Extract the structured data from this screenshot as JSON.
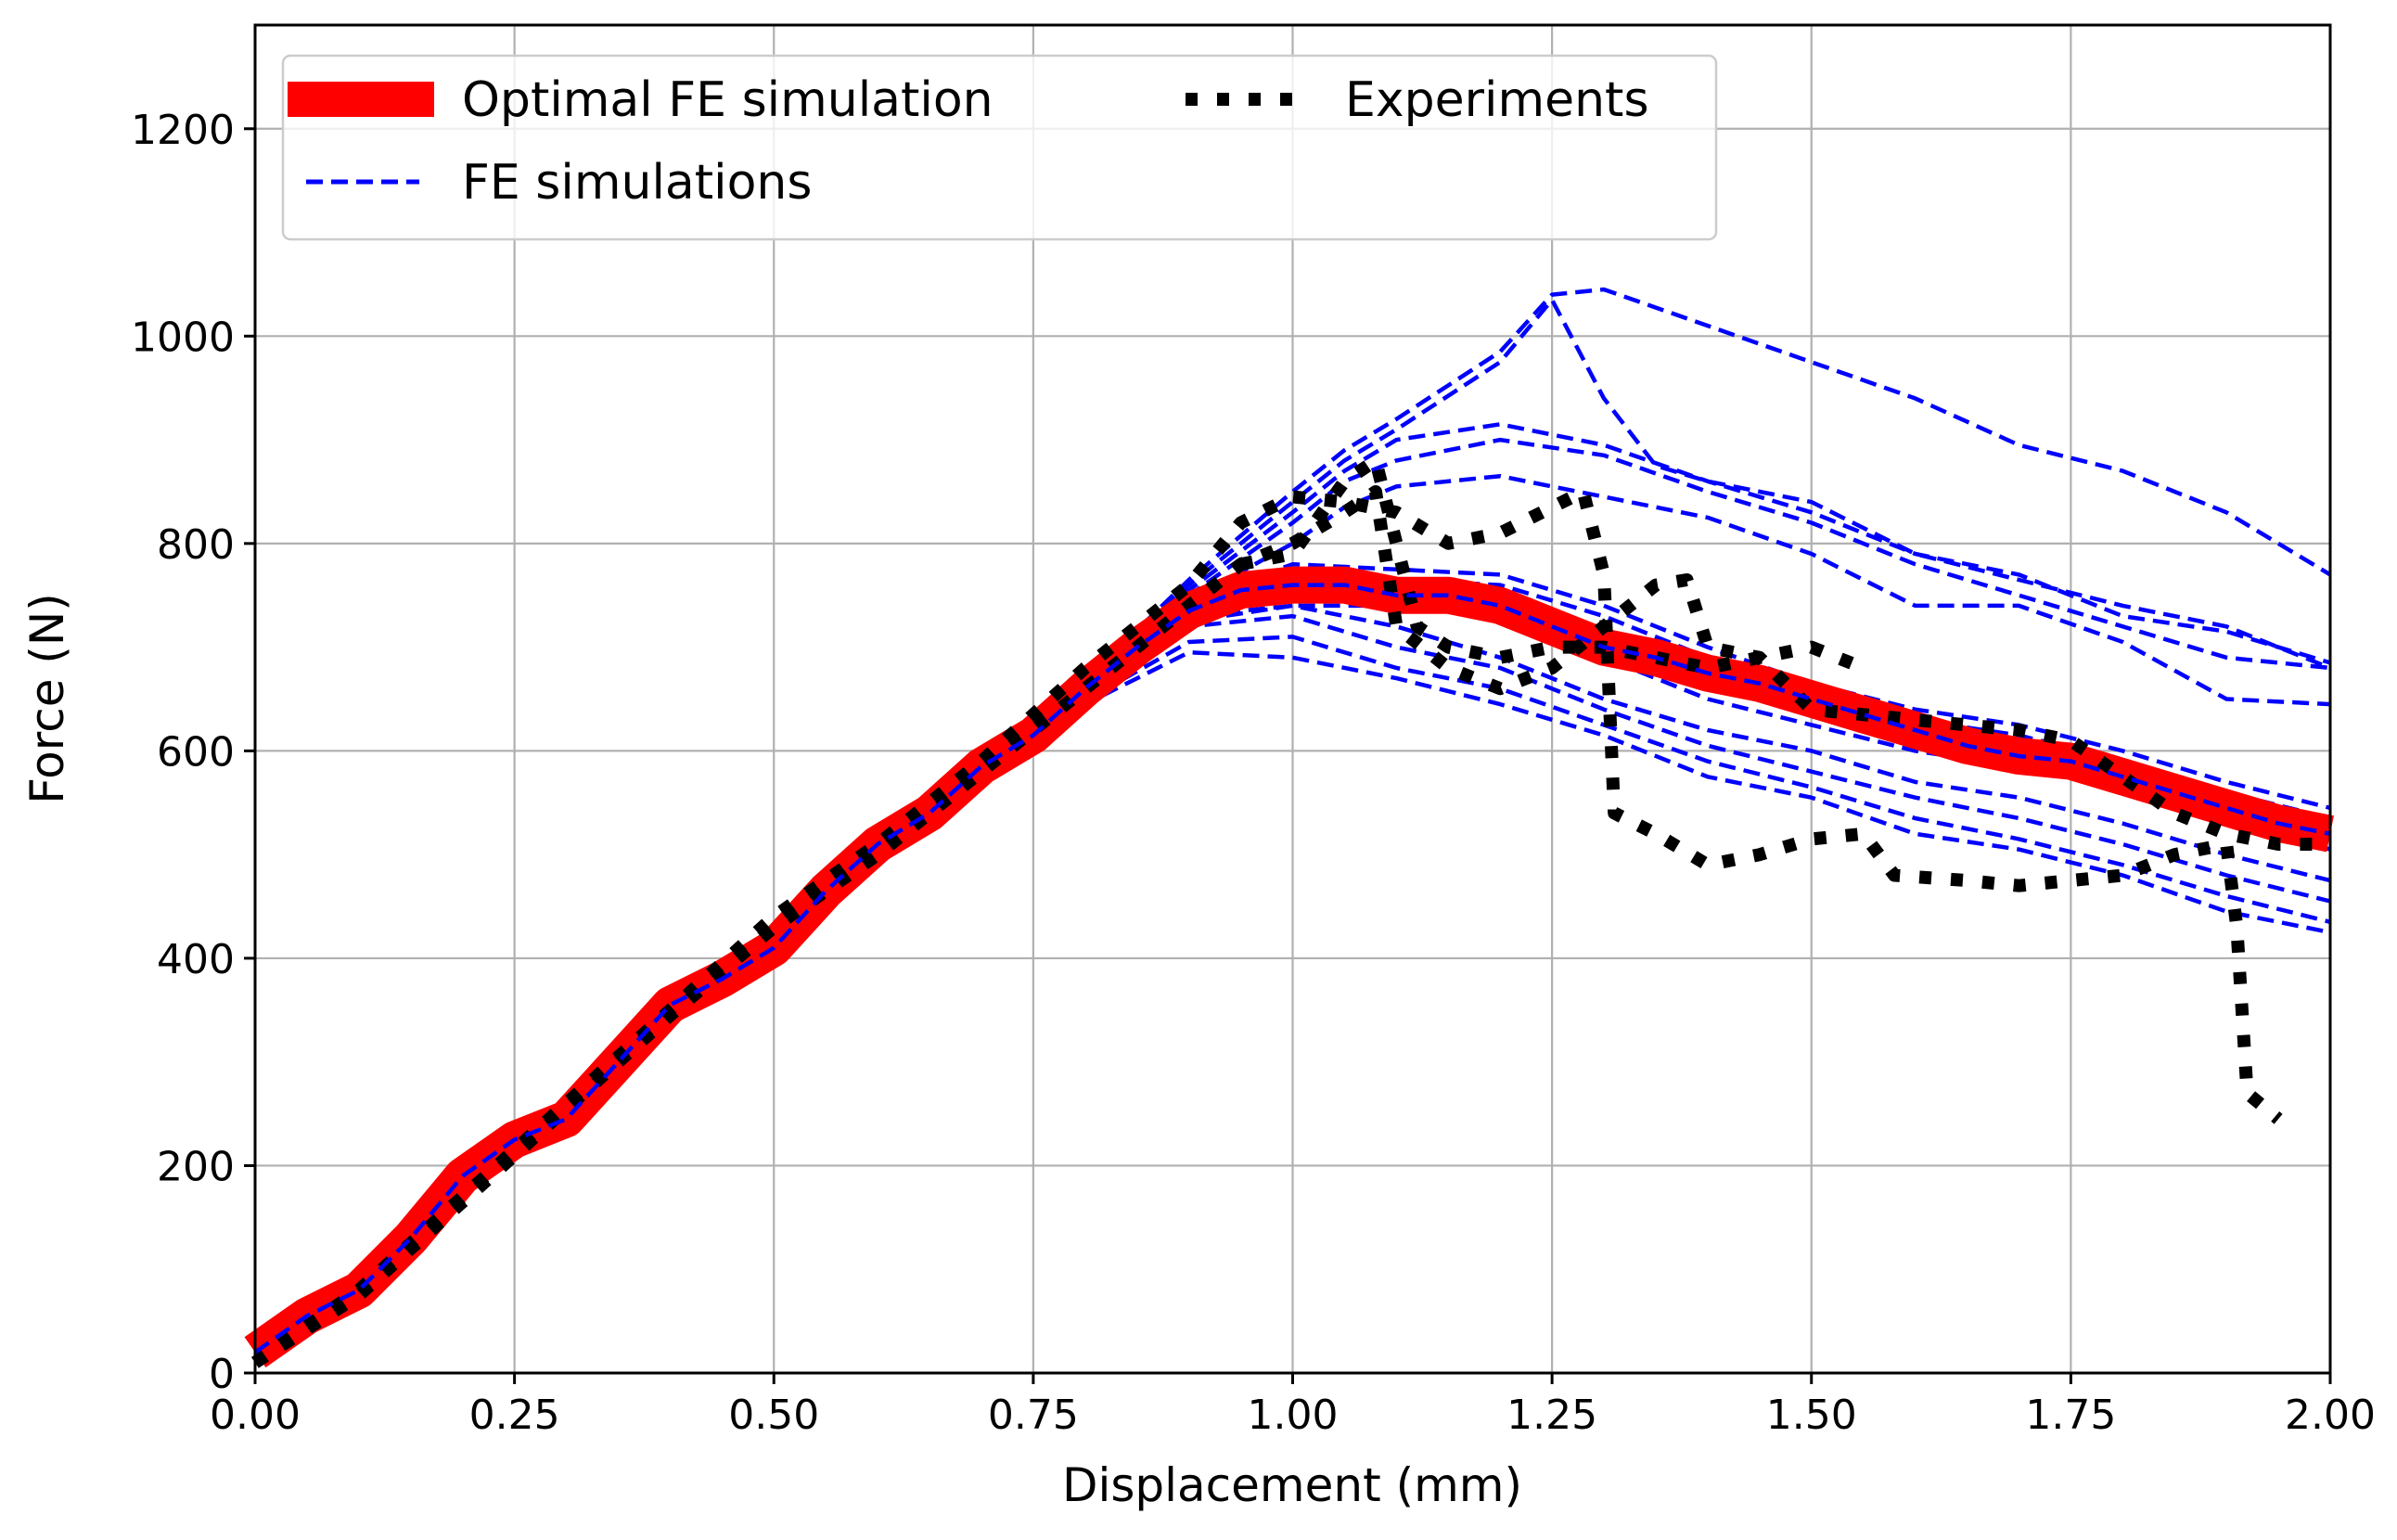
{
  "chart_data": {
    "type": "line",
    "title": "",
    "xlabel": "Displacement (mm)",
    "ylabel": "Force (N)",
    "xlim": [
      0.0,
      2.0
    ],
    "ylim": [
      0,
      1300
    ],
    "grid": true,
    "legend_position": "top-left",
    "xticks": [
      "0.00",
      "0.25",
      "0.50",
      "0.75",
      "1.00",
      "1.25",
      "1.50",
      "1.75",
      "2.00"
    ],
    "yticks": [
      "0",
      "200",
      "400",
      "600",
      "800",
      "1000",
      "1200"
    ],
    "colors": {
      "optimal": "#ff0000",
      "simulations": "#0000ff",
      "experiments": "#000000"
    },
    "legend": {
      "optimal": "Optimal FE simulation",
      "simulations": "FE simulations",
      "experiments": "Experiments"
    },
    "series": [
      {
        "name": "Optimal FE simulation",
        "style": "solid-thick",
        "x": [
          0.0,
          0.05,
          0.1,
          0.15,
          0.2,
          0.25,
          0.3,
          0.35,
          0.4,
          0.45,
          0.5,
          0.55,
          0.6,
          0.65,
          0.7,
          0.75,
          0.8,
          0.85,
          0.9,
          0.95,
          1.0,
          1.05,
          1.1,
          1.15,
          1.2,
          1.25,
          1.3,
          1.35,
          1.4,
          1.45,
          1.5,
          1.55,
          1.6,
          1.65,
          1.7,
          1.75,
          1.8,
          1.85,
          1.9,
          1.95,
          2.0
        ],
        "y": [
          20,
          55,
          80,
          130,
          190,
          225,
          245,
          300,
          355,
          380,
          410,
          465,
          510,
          540,
          585,
          615,
          660,
          700,
          735,
          755,
          760,
          760,
          750,
          750,
          740,
          720,
          700,
          690,
          675,
          665,
          650,
          635,
          620,
          605,
          595,
          590,
          575,
          560,
          545,
          530,
          520
        ]
      },
      {
        "name": "FE simulations",
        "style": "dashed",
        "curves": [
          {
            "x": [
              0.0,
              0.25,
              0.5,
              0.75,
              0.9,
              1.0,
              1.05,
              1.1,
              1.2,
              1.25,
              1.3,
              1.4,
              1.5,
              1.6,
              1.7,
              1.8,
              1.9,
              2.0
            ],
            "y": [
              15,
              215,
              420,
              620,
              765,
              850,
              890,
              920,
              985,
              1040,
              1045,
              1010,
              975,
              940,
              895,
              870,
              830,
              770
            ]
          },
          {
            "x": [
              0.0,
              0.25,
              0.5,
              0.75,
              0.9,
              1.0,
              1.05,
              1.1,
              1.2,
              1.25,
              1.3,
              1.35,
              1.4,
              1.5,
              1.6,
              1.7,
              1.8,
              1.9,
              2.0
            ],
            "y": [
              15,
              215,
              420,
              620,
              760,
              840,
              880,
              910,
              975,
              1035,
              940,
              875,
              860,
              840,
              790,
              765,
              740,
              720,
              680
            ]
          },
          {
            "x": [
              0.0,
              0.25,
              0.5,
              0.75,
              0.9,
              1.0,
              1.05,
              1.1,
              1.2,
              1.3,
              1.4,
              1.5,
              1.6,
              1.7,
              1.8,
              1.9,
              2.0
            ],
            "y": [
              15,
              215,
              420,
              620,
              755,
              830,
              870,
              900,
              915,
              895,
              860,
              830,
              790,
              770,
              730,
              715,
              685
            ]
          },
          {
            "x": [
              0.0,
              0.25,
              0.5,
              0.75,
              0.9,
              1.0,
              1.05,
              1.1,
              1.2,
              1.3,
              1.4,
              1.5,
              1.6,
              1.7,
              1.8,
              1.9,
              2.0
            ],
            "y": [
              15,
              215,
              420,
              620,
              750,
              820,
              860,
              880,
              900,
              885,
              850,
              820,
              780,
              750,
              720,
              690,
              680
            ]
          },
          {
            "x": [
              0.0,
              0.25,
              0.5,
              0.75,
              0.9,
              1.0,
              1.05,
              1.1,
              1.2,
              1.3,
              1.4,
              1.5,
              1.6,
              1.7,
              1.8,
              1.9,
              2.0
            ],
            "y": [
              15,
              215,
              420,
              620,
              745,
              800,
              835,
              855,
              865,
              845,
              825,
              790,
              740,
              740,
              705,
              650,
              645
            ]
          },
          {
            "x": [
              0.0,
              0.25,
              0.5,
              0.75,
              0.9,
              1.0,
              1.1,
              1.2,
              1.3,
              1.4,
              1.5,
              1.6,
              1.7,
              1.8,
              1.9,
              2.0
            ],
            "y": [
              15,
              215,
              420,
              620,
              745,
              780,
              775,
              770,
              740,
              700,
              665,
              640,
              625,
              600,
              570,
              545
            ]
          },
          {
            "x": [
              0.0,
              0.25,
              0.5,
              0.75,
              0.9,
              1.0,
              1.1,
              1.2,
              1.3,
              1.4,
              1.5,
              1.6,
              1.7,
              1.8,
              1.9,
              2.0
            ],
            "y": [
              15,
              215,
              420,
              620,
              740,
              770,
              765,
              760,
              730,
              690,
              660,
              630,
              615,
              590,
              560,
              535
            ]
          },
          {
            "x": [
              0.0,
              0.25,
              0.5,
              0.75,
              0.9,
              1.0,
              1.1,
              1.2,
              1.3,
              1.4,
              1.5,
              1.6,
              1.7,
              1.8,
              1.9,
              2.0
            ],
            "y": [
              15,
              215,
              420,
              620,
              738,
              760,
              755,
              745,
              715,
              680,
              650,
              625,
              610,
              585,
              555,
              525
            ]
          },
          {
            "x": [
              0.0,
              0.25,
              0.5,
              0.75,
              0.9,
              1.0,
              1.1,
              1.2,
              1.3,
              1.4,
              1.5,
              1.6,
              1.7,
              1.8,
              1.9,
              2.0
            ],
            "y": [
              15,
              215,
              420,
              620,
              735,
              750,
              745,
              735,
              700,
              665,
              640,
              615,
              600,
              575,
              545,
              515
            ]
          },
          {
            "x": [
              0.0,
              0.25,
              0.5,
              0.75,
              0.9,
              1.0,
              1.1,
              1.2,
              1.3,
              1.4,
              1.5,
              1.6,
              1.7,
              1.8,
              1.9,
              2.0
            ],
            "y": [
              15,
              215,
              420,
              620,
              730,
              740,
              740,
              730,
              690,
              650,
              625,
              600,
              585,
              565,
              535,
              505
            ]
          },
          {
            "x": [
              0.0,
              0.25,
              0.5,
              0.75,
              0.9,
              1.0,
              1.1,
              1.2,
              1.3,
              1.4,
              1.5,
              1.6,
              1.7,
              1.8,
              1.9,
              2.0
            ],
            "y": [
              15,
              215,
              420,
              620,
              725,
              740,
              720,
              690,
              650,
              620,
              600,
              570,
              555,
              530,
              500,
              475
            ]
          },
          {
            "x": [
              0.0,
              0.25,
              0.5,
              0.75,
              0.9,
              1.0,
              1.1,
              1.2,
              1.3,
              1.4,
              1.5,
              1.6,
              1.7,
              1.8,
              1.9,
              2.0
            ],
            "y": [
              15,
              215,
              420,
              620,
              720,
              730,
              700,
              680,
              640,
              605,
              580,
              555,
              535,
              510,
              480,
              455
            ]
          },
          {
            "x": [
              0.0,
              0.25,
              0.5,
              0.75,
              0.9,
              1.0,
              1.1,
              1.2,
              1.3,
              1.4,
              1.5,
              1.6,
              1.7,
              1.8,
              1.9,
              2.0
            ],
            "y": [
              15,
              215,
              420,
              620,
              705,
              710,
              680,
              660,
              625,
              590,
              565,
              535,
              515,
              490,
              460,
              435
            ]
          },
          {
            "x": [
              0.0,
              0.25,
              0.5,
              0.75,
              0.9,
              1.0,
              1.1,
              1.2,
              1.3,
              1.4,
              1.5,
              1.6,
              1.7,
              1.8,
              1.9,
              2.0
            ],
            "y": [
              15,
              215,
              420,
              620,
              695,
              690,
              670,
              645,
              615,
              575,
              555,
              520,
              505,
              480,
              445,
              425
            ]
          }
        ]
      },
      {
        "name": "Experiments",
        "style": "dotted",
        "curves": [
          {
            "x": [
              0.0,
              0.1,
              0.2,
              0.3,
              0.4,
              0.5,
              0.6,
              0.7,
              0.8,
              0.9,
              0.95,
              1.0,
              1.05,
              1.1,
              1.15,
              1.2,
              1.25,
              1.28,
              1.3,
              1.31,
              1.35,
              1.4,
              1.45,
              1.5,
              1.55,
              1.58,
              1.65,
              1.7,
              1.75,
              1.8,
              1.85,
              1.9,
              1.91,
              1.92,
              1.95
            ],
            "y": [
              10,
              80,
              170,
              260,
              350,
              440,
              510,
              590,
              680,
              760,
              820,
              845,
              840,
              830,
              800,
              810,
              835,
              850,
              770,
              540,
              520,
              490,
              500,
              515,
              520,
              480,
              475,
              470,
              475,
              480,
              500,
              510,
              430,
              270,
              245
            ]
          },
          {
            "x": [
              0.0,
              0.1,
              0.2,
              0.3,
              0.4,
              0.5,
              0.6,
              0.7,
              0.8,
              0.9,
              0.95,
              1.0,
              1.05,
              1.08,
              1.1,
              1.15,
              1.2,
              1.25,
              1.3,
              1.35,
              1.38,
              1.4,
              1.45,
              1.5,
              1.6,
              1.7,
              1.75,
              1.8,
              1.85,
              1.9,
              1.95,
              2.0
            ],
            "y": [
              10,
              75,
              165,
              255,
              345,
              430,
              500,
              580,
              660,
              740,
              780,
              800,
              830,
              850,
              720,
              680,
              660,
              680,
              720,
              760,
              765,
              700,
              690,
              640,
              630,
              620,
              610,
              575,
              540,
              520,
              510,
              510
            ]
          },
          {
            "x": [
              0.95,
              1.0,
              1.05,
              1.08,
              1.1,
              1.12,
              1.15,
              1.2,
              1.25,
              1.3,
              1.35,
              1.4,
              1.45,
              1.5,
              1.55
            ],
            "y": [
              780,
              790,
              860,
              880,
              800,
              720,
              700,
              690,
              700,
              700,
              690,
              680,
              690,
              700,
              680
            ]
          }
        ]
      }
    ]
  }
}
